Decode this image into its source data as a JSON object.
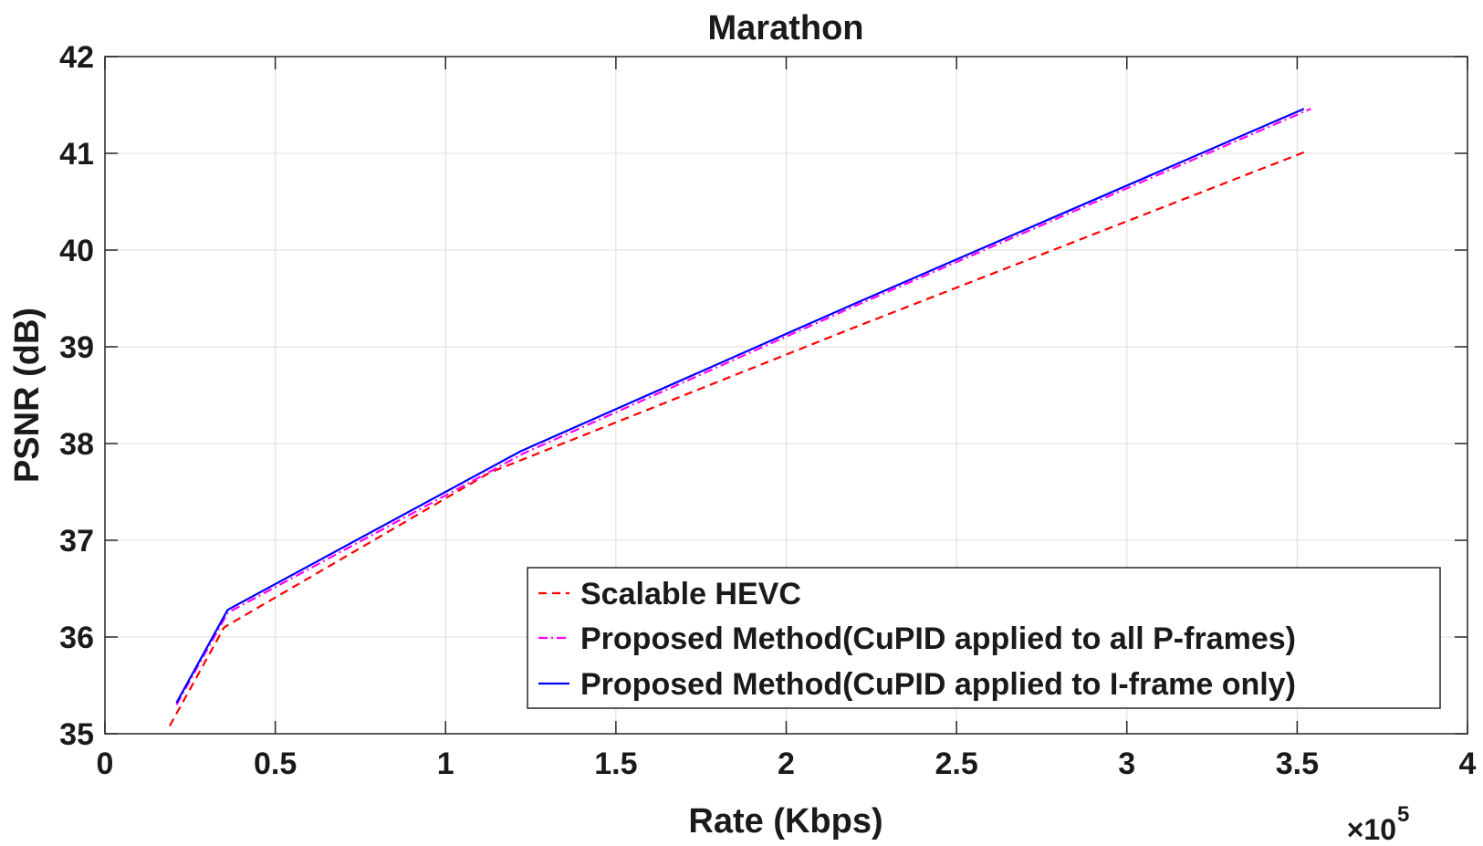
{
  "chart_data": {
    "type": "line",
    "title": "Marathon",
    "xlabel": "Rate (Kbps)",
    "ylabel": "PSNR (dB)",
    "x_multiplier_label": "×10",
    "x_multiplier_exponent": "5",
    "xlim": [
      0,
      4
    ],
    "ylim": [
      35,
      42
    ],
    "xticks": [
      0,
      0.5,
      1,
      1.5,
      2,
      2.5,
      3,
      3.5,
      4
    ],
    "xtick_labels": [
      "0",
      "0.5",
      "1",
      "1.5",
      "2",
      "2.5",
      "3",
      "3.5",
      "4"
    ],
    "yticks": [
      35,
      36,
      37,
      38,
      39,
      40,
      41,
      42
    ],
    "ytick_labels": [
      "35",
      "36",
      "37",
      "38",
      "39",
      "40",
      "41",
      "42"
    ],
    "grid": true,
    "legend_position": "bottom-right",
    "series": [
      {
        "name": "Scalable HEVC",
        "color": "#ff0000",
        "style": "dashed",
        "x": [
          0.19,
          0.35,
          1.13,
          2.2,
          3.52
        ],
        "y": [
          35.08,
          36.1,
          37.7,
          39.2,
          41.01
        ]
      },
      {
        "name": "Proposed Method(CuPID applied to all P-frames)",
        "color": "#ff00ff",
        "style": "dashdot",
        "x": [
          0.21,
          0.36,
          1.23,
          2.22,
          3.54
        ],
        "y": [
          35.3,
          36.25,
          37.9,
          39.45,
          41.46
        ]
      },
      {
        "name": "Proposed Method(CuPID applied to I-frame only)",
        "color": "#0000ff",
        "style": "solid",
        "x": [
          0.21,
          0.36,
          1.22,
          2.21,
          3.52
        ],
        "y": [
          35.32,
          36.28,
          37.92,
          39.46,
          41.46
        ]
      }
    ]
  }
}
